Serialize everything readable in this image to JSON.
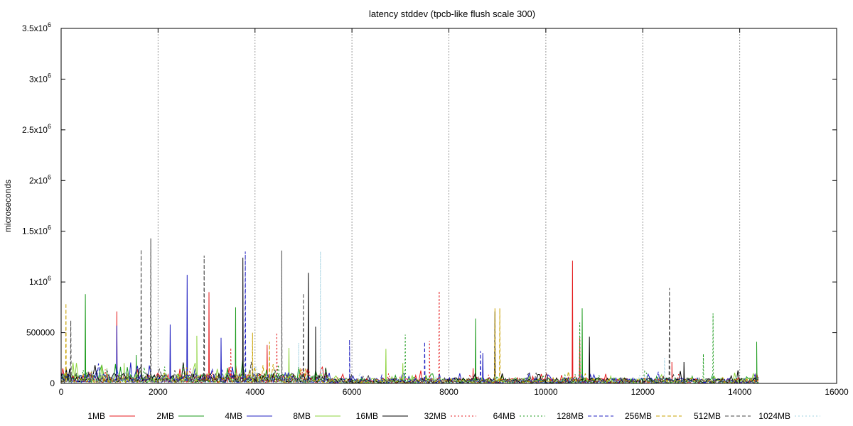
{
  "chart_data": {
    "type": "line",
    "title": "latency stddev (tpcb-like flush scale 300)",
    "xlabel": "",
    "ylabel": "microseconds",
    "xlim": [
      0,
      16000
    ],
    "ylim": [
      0,
      3500000
    ],
    "x_ticks": [
      {
        "value": 0,
        "label": "0"
      },
      {
        "value": 2000,
        "label": "2000"
      },
      {
        "value": 4000,
        "label": "4000"
      },
      {
        "value": 6000,
        "label": "6000"
      },
      {
        "value": 8000,
        "label": "8000"
      },
      {
        "value": 10000,
        "label": "10000"
      },
      {
        "value": 12000,
        "label": "12000"
      },
      {
        "value": 14000,
        "label": "14000"
      },
      {
        "value": 16000,
        "label": "16000"
      }
    ],
    "y_ticks": [
      {
        "value": 0,
        "label": "0",
        "sup": ""
      },
      {
        "value": 500000,
        "label": "500000",
        "sup": ""
      },
      {
        "value": 1000000,
        "label": "1x10",
        "sup": "6"
      },
      {
        "value": 1500000,
        "label": "1.5x10",
        "sup": "6"
      },
      {
        "value": 2000000,
        "label": "2x10",
        "sup": "6"
      },
      {
        "value": 2500000,
        "label": "2.5x10",
        "sup": "6"
      },
      {
        "value": 3000000,
        "label": "3x10",
        "sup": "6"
      },
      {
        "value": 3500000,
        "label": "3.5x10",
        "sup": "6"
      }
    ],
    "vertical_markers": [
      2000,
      4000,
      6000,
      8000,
      10000,
      12000,
      14000
    ],
    "legend_position": "bottom",
    "series": [
      {
        "name": "1MB",
        "color": "#e41a1c",
        "dash": "solid",
        "x_end": 14400,
        "base": 40000,
        "spikes": [
          [
            1150,
            710000
          ],
          [
            3050,
            900000
          ],
          [
            4250,
            380000
          ],
          [
            8500,
            150000
          ],
          [
            10550,
            1210000
          ],
          [
            10700,
            450000
          ],
          [
            12600,
            210000
          ]
        ]
      },
      {
        "name": "2MB",
        "color": "#1a9a1a",
        "dash": "solid",
        "x_end": 14400,
        "base": 40000,
        "spikes": [
          [
            500,
            880000
          ],
          [
            1550,
            280000
          ],
          [
            3600,
            750000
          ],
          [
            8550,
            640000
          ],
          [
            10750,
            740000
          ],
          [
            14350,
            410000
          ]
        ]
      },
      {
        "name": "4MB",
        "color": "#2020c0",
        "dash": "solid",
        "x_end": 14400,
        "base": 40000,
        "spikes": [
          [
            1150,
            570000
          ],
          [
            2250,
            580000
          ],
          [
            2600,
            1070000
          ],
          [
            3300,
            450000
          ],
          [
            8700,
            300000
          ]
        ]
      },
      {
        "name": "8MB",
        "color": "#8dd33c",
        "dash": "solid",
        "x_end": 14400,
        "base": 40000,
        "spikes": [
          [
            1300,
            200000
          ],
          [
            2800,
            470000
          ],
          [
            4700,
            350000
          ],
          [
            6700,
            340000
          ],
          [
            7050,
            200000
          ]
        ]
      },
      {
        "name": "16MB",
        "color": "#000000",
        "dash": "solid",
        "x_end": 14400,
        "base": 40000,
        "spikes": [
          [
            3750,
            1240000
          ],
          [
            5100,
            1090000
          ],
          [
            5250,
            560000
          ],
          [
            8950,
            710000
          ],
          [
            10900,
            460000
          ],
          [
            12850,
            210000
          ]
        ]
      },
      {
        "name": "32MB",
        "color": "#e41a1c",
        "dash": "dotted",
        "x_end": 14400,
        "base": 35000,
        "spikes": [
          [
            7800,
            910000
          ],
          [
            7600,
            420000
          ],
          [
            3500,
            350000
          ],
          [
            4450,
            500000
          ]
        ]
      },
      {
        "name": "64MB",
        "color": "#1a9a1a",
        "dash": "dotted",
        "x_end": 14400,
        "base": 35000,
        "spikes": [
          [
            7100,
            480000
          ],
          [
            10700,
            600000
          ],
          [
            13450,
            690000
          ],
          [
            13250,
            290000
          ]
        ]
      },
      {
        "name": "128MB",
        "color": "#2020c0",
        "dash": "dashed",
        "x_end": 14400,
        "base": 35000,
        "spikes": [
          [
            3800,
            1300000
          ],
          [
            5950,
            430000
          ],
          [
            7500,
            410000
          ],
          [
            8650,
            320000
          ]
        ]
      },
      {
        "name": "256MB",
        "color": "#c8a000",
        "dash": "dashed",
        "x_end": 14400,
        "base": 35000,
        "spikes": [
          [
            100,
            790000
          ],
          [
            3950,
            500000
          ],
          [
            8950,
            740000
          ],
          [
            9050,
            740000
          ],
          [
            4300,
            410000
          ]
        ]
      },
      {
        "name": "512MB",
        "color": "#444444",
        "dash": "dashed",
        "x_end": 14400,
        "base": 40000,
        "spikes": [
          [
            1650,
            1320000
          ],
          [
            1850,
            1430000
          ],
          [
            2950,
            1260000
          ],
          [
            4550,
            1310000
          ],
          [
            5000,
            890000
          ],
          [
            12550,
            940000
          ],
          [
            200,
            620000
          ]
        ]
      },
      {
        "name": "1024MB",
        "color": "#9ed0e0",
        "dash": "dotted",
        "x_end": 14400,
        "base": 30000,
        "spikes": [
          [
            5350,
            1300000
          ],
          [
            4900,
            400000
          ],
          [
            12450,
            250000
          ]
        ]
      }
    ]
  }
}
